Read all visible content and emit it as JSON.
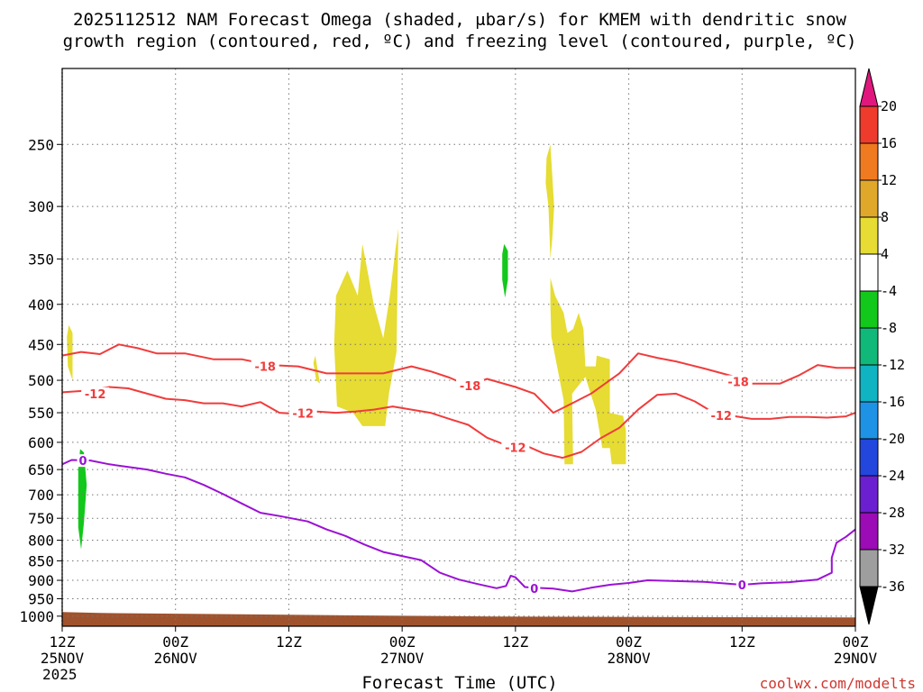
{
  "chart_data": {
    "type": "time-height cross section",
    "title_line1": "2025112512 NAM Forecast Omega (shaded, μbar/s) for KMEM with dendritic snow",
    "title_line2": "growth region (contoured, red, ºC) and freezing level (contoured, purple, ºC)",
    "xlabel": "Forecast Time (UTC)",
    "credit": "coolwx.com/modelts",
    "x_ticks": [
      {
        "hour": 0,
        "line1": "12Z",
        "line2": "25NOV",
        "line3": "2025"
      },
      {
        "hour": 12,
        "line1": "00Z",
        "line2": "26NOV",
        "line3": ""
      },
      {
        "hour": 24,
        "line1": "12Z",
        "line2": "",
        "line3": ""
      },
      {
        "hour": 36,
        "line1": "00Z",
        "line2": "27NOV",
        "line3": ""
      },
      {
        "hour": 48,
        "line1": "12Z",
        "line2": "",
        "line3": ""
      },
      {
        "hour": 60,
        "line1": "00Z",
        "line2": "28NOV",
        "line3": ""
      },
      {
        "hour": 72,
        "line1": "12Z",
        "line2": "",
        "line3": ""
      },
      {
        "hour": 84,
        "line1": "00Z",
        "line2": "29NOV",
        "line3": ""
      }
    ],
    "x_range_hours": [
      0,
      84
    ],
    "y_range_hPa": [
      1030,
      200
    ],
    "y_ticks": [
      250,
      300,
      350,
      400,
      450,
      500,
      550,
      600,
      650,
      700,
      750,
      800,
      850,
      900,
      950,
      1000
    ],
    "colorbar": {
      "labels": [
        "20",
        "16",
        "12",
        "8",
        "4",
        "-4",
        "-8",
        "-12",
        "-16",
        "-20",
        "-24",
        "-28",
        "-32",
        "-36"
      ],
      "colors": [
        "#e0177d",
        "#ee3b2c",
        "#f07a20",
        "#e0a82b",
        "#e6dc33",
        "#ffffff",
        "#12c81a",
        "#10b879",
        "#0fb3c1",
        "#1e93e6",
        "#2346dc",
        "#6a1fd0",
        "#9b0bb6",
        "#9e9e9e",
        "#000000"
      ]
    },
    "contour_labels": {
      "dgz_warm": "-12",
      "dgz_cold": "-18",
      "freezing": "0"
    },
    "series": [
      {
        "name": "-18C isotherm (red)",
        "color": "#f03c3c",
        "points": [
          [
            0,
            465
          ],
          [
            2,
            460
          ],
          [
            4,
            463
          ],
          [
            6,
            450
          ],
          [
            8,
            455
          ],
          [
            10,
            462
          ],
          [
            13,
            462
          ],
          [
            16,
            470
          ],
          [
            19,
            470
          ],
          [
            22,
            478
          ],
          [
            25,
            480
          ],
          [
            28,
            490
          ],
          [
            31,
            490
          ],
          [
            34,
            490
          ],
          [
            37,
            480
          ],
          [
            39,
            487
          ],
          [
            41,
            496
          ],
          [
            43,
            508
          ],
          [
            45,
            498
          ],
          [
            48,
            510
          ],
          [
            50,
            520
          ],
          [
            52,
            550
          ],
          [
            54,
            535
          ],
          [
            56,
            520
          ],
          [
            59,
            490
          ],
          [
            61,
            462
          ],
          [
            63,
            468
          ],
          [
            65,
            473
          ],
          [
            68,
            483
          ],
          [
            71,
            494
          ],
          [
            73,
            505
          ],
          [
            76,
            505
          ],
          [
            78,
            493
          ],
          [
            80,
            478
          ],
          [
            82,
            482
          ],
          [
            84,
            482
          ]
        ]
      },
      {
        "name": "-12C isotherm (red)",
        "color": "#f03c3c",
        "points": [
          [
            0,
            518
          ],
          [
            3,
            515
          ],
          [
            5,
            510
          ],
          [
            7,
            512
          ],
          [
            9,
            520
          ],
          [
            11,
            528
          ],
          [
            13,
            530
          ],
          [
            15,
            535
          ],
          [
            17,
            535
          ],
          [
            19,
            540
          ],
          [
            21,
            533
          ],
          [
            23,
            550
          ],
          [
            25,
            552
          ],
          [
            27,
            548
          ],
          [
            29,
            550
          ],
          [
            31,
            548
          ],
          [
            33,
            545
          ],
          [
            35,
            540
          ],
          [
            37,
            545
          ],
          [
            39,
            550
          ],
          [
            41,
            560
          ],
          [
            43,
            570
          ],
          [
            45,
            592
          ],
          [
            47,
            605
          ],
          [
            49,
            605
          ],
          [
            51,
            620
          ],
          [
            53,
            628
          ],
          [
            55,
            617
          ],
          [
            57,
            593
          ],
          [
            59,
            575
          ],
          [
            61,
            545
          ],
          [
            63,
            522
          ],
          [
            65,
            520
          ],
          [
            67,
            532
          ],
          [
            69,
            550
          ],
          [
            71,
            555
          ],
          [
            73,
            560
          ],
          [
            75,
            560
          ],
          [
            77,
            557
          ],
          [
            79,
            557
          ],
          [
            81,
            558
          ],
          [
            83,
            556
          ],
          [
            84,
            550
          ]
        ]
      },
      {
        "name": "0C freezing level (purple)",
        "color": "#9b11d4",
        "points": [
          [
            0,
            640
          ],
          [
            1,
            632
          ],
          [
            3,
            633
          ],
          [
            5,
            640
          ],
          [
            7,
            645
          ],
          [
            9,
            650
          ],
          [
            11,
            658
          ],
          [
            13,
            665
          ],
          [
            15,
            680
          ],
          [
            17,
            698
          ],
          [
            19,
            718
          ],
          [
            21,
            738
          ],
          [
            23,
            745
          ],
          [
            26,
            757
          ],
          [
            28,
            775
          ],
          [
            30,
            790
          ],
          [
            32,
            810
          ],
          [
            34,
            828
          ],
          [
            36,
            838
          ],
          [
            38,
            848
          ],
          [
            40,
            880
          ],
          [
            42,
            898
          ],
          [
            44,
            910
          ],
          [
            46,
            921
          ],
          [
            47,
            915
          ],
          [
            47.5,
            888
          ],
          [
            48,
            892
          ],
          [
            49,
            918
          ],
          [
            50,
            920
          ],
          [
            52,
            922
          ],
          [
            54,
            930
          ],
          [
            56,
            920
          ],
          [
            58,
            912
          ],
          [
            60,
            907
          ],
          [
            62,
            900
          ],
          [
            65,
            902
          ],
          [
            68,
            904
          ],
          [
            70,
            908
          ],
          [
            72,
            912
          ],
          [
            74,
            908
          ],
          [
            77,
            905
          ],
          [
            80,
            898
          ],
          [
            81.5,
            880
          ],
          [
            81.5,
            842
          ],
          [
            82,
            806
          ],
          [
            83,
            792
          ],
          [
            84,
            775
          ]
        ]
      }
    ],
    "shaded_regions": [
      {
        "category": "4 to 8",
        "color": "#e6dc33",
        "points": [
          [
            0.7,
            425
          ],
          [
            1.1,
            435
          ],
          [
            1.1,
            500
          ],
          [
            0.6,
            480
          ],
          [
            0.5,
            440
          ]
        ]
      },
      {
        "category": "4 to 8",
        "color": "#e6dc33",
        "points": [
          [
            26.8,
            465
          ],
          [
            27.3,
            505
          ],
          [
            26.9,
            500
          ],
          [
            26.6,
            475
          ]
        ]
      },
      {
        "category": "4 to 8",
        "color": "#e6dc33",
        "points": [
          [
            29.0,
            390
          ],
          [
            30.2,
            362
          ],
          [
            31.3,
            390
          ],
          [
            31.8,
            335
          ],
          [
            33.0,
            400
          ],
          [
            34.0,
            442
          ],
          [
            34.7,
            390
          ],
          [
            35.3,
            340
          ],
          [
            35.6,
            320
          ],
          [
            35.4,
            460
          ],
          [
            34.6,
            520
          ],
          [
            34.2,
            572
          ],
          [
            31.8,
            572
          ],
          [
            30.8,
            550
          ],
          [
            29.1,
            540
          ],
          [
            28.8,
            450
          ]
        ]
      },
      {
        "category": "4 to 8",
        "color": "#e6dc33",
        "points": [
          [
            51.3,
            260
          ],
          [
            51.7,
            250
          ],
          [
            52.1,
            300
          ],
          [
            51.9,
            330
          ],
          [
            51.7,
            350
          ],
          [
            51.5,
            300
          ],
          [
            51.2,
            280
          ]
        ]
      },
      {
        "category": "4 to 8",
        "color": "#e6dc33",
        "points": [
          [
            51.7,
            370
          ],
          [
            52.2,
            390
          ],
          [
            53.1,
            410
          ],
          [
            53.5,
            435
          ],
          [
            54.1,
            430
          ],
          [
            54.7,
            410
          ],
          [
            55.2,
            430
          ],
          [
            55.4,
            480
          ],
          [
            56.5,
            480
          ],
          [
            56.6,
            465
          ],
          [
            58.0,
            470
          ],
          [
            58.0,
            550
          ],
          [
            59.4,
            555
          ],
          [
            59.7,
            580
          ],
          [
            59.7,
            640
          ],
          [
            58.2,
            640
          ],
          [
            58.0,
            610
          ],
          [
            57.2,
            610
          ],
          [
            56.5,
            545
          ],
          [
            55.4,
            495
          ],
          [
            54.0,
            520
          ],
          [
            54.1,
            640
          ],
          [
            53.2,
            640
          ],
          [
            53.1,
            530
          ],
          [
            51.8,
            440
          ],
          [
            51.7,
            400
          ]
        ]
      },
      {
        "category": "-4 to -8",
        "color": "#12c81a",
        "points": [
          [
            46.8,
            335
          ],
          [
            47.2,
            342
          ],
          [
            47.2,
            372
          ],
          [
            46.9,
            392
          ],
          [
            46.6,
            372
          ],
          [
            46.6,
            345
          ]
        ]
      },
      {
        "category": "-4 to -8",
        "color": "#12c81a",
        "points": [
          [
            1.9,
            612
          ],
          [
            2.3,
            618
          ],
          [
            2.6,
            680
          ],
          [
            2.3,
            760
          ],
          [
            2.0,
            822
          ],
          [
            1.7,
            770
          ],
          [
            1.7,
            700
          ],
          [
            1.7,
            650
          ]
        ]
      }
    ],
    "ground": {
      "color": "#a0522d",
      "top_hPa_start": 988,
      "top_hPa_end": 1004
    }
  }
}
